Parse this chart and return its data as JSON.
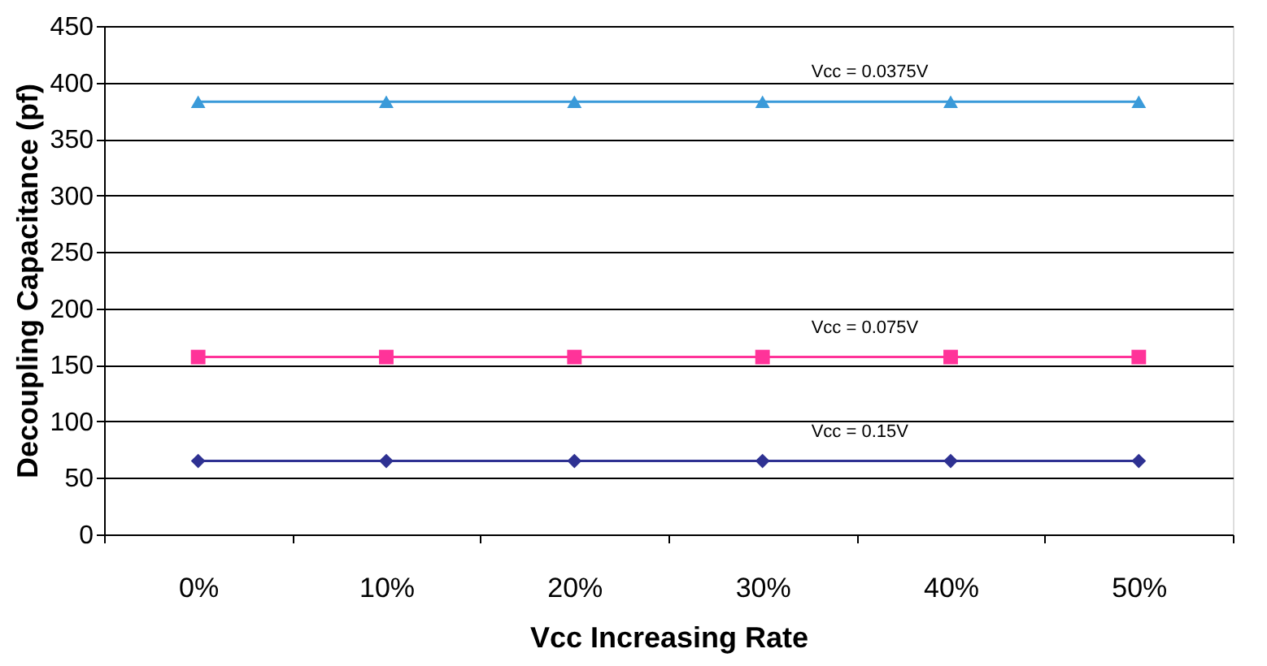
{
  "chart_data": {
    "type": "line",
    "xlabel": "Vcc Increasing Rate",
    "ylabel": "Decoupling Capacitance (pf)",
    "categories": [
      "0%",
      "10%",
      "20%",
      "30%",
      "40%",
      "50%"
    ],
    "series": [
      {
        "name": "Vcc = 0.0375V",
        "color": "#3a9ad9",
        "values": [
          383,
          383,
          383,
          383,
          383,
          383
        ],
        "marker": "triangle"
      },
      {
        "name": "Vcc = 0.075V",
        "color": "#ff3399",
        "values": [
          157,
          157,
          157,
          157,
          157,
          157
        ],
        "marker": "square"
      },
      {
        "name": "Vcc = 0.15V",
        "color": "#2e3192",
        "values": [
          65,
          65,
          65,
          65,
          65,
          65
        ],
        "marker": "diamond"
      }
    ],
    "ylim": [
      0,
      450
    ],
    "yticks": [
      0,
      50,
      100,
      150,
      200,
      250,
      300,
      350,
      400,
      450
    ],
    "grid": "y"
  }
}
